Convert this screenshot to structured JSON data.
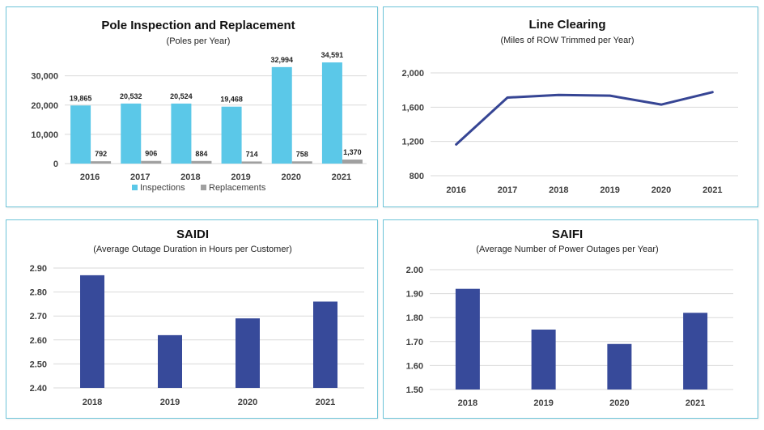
{
  "chart_data": [
    {
      "type": "bar",
      "title": "Pole Inspection and Replacement",
      "subtitle": "(Poles per Year)",
      "categories": [
        "2016",
        "2017",
        "2018",
        "2019",
        "2020",
        "2021"
      ],
      "series": [
        {
          "name": "Inspections",
          "values": [
            19865,
            20532,
            20524,
            19468,
            32994,
            34591
          ],
          "labels": [
            "19,865",
            "20,532",
            "20,524",
            "19,468",
            "32,994",
            "34,591"
          ],
          "color": "#5bc8e8"
        },
        {
          "name": "Replacements",
          "values": [
            792,
            906,
            884,
            714,
            758,
            1370
          ],
          "labels": [
            "792",
            "906",
            "884",
            "714",
            "758",
            "1,370"
          ],
          "color": "#a0a0a0"
        }
      ],
      "yticks": [
        "0",
        "10,000",
        "20,000",
        "30,000"
      ],
      "ytick_values": [
        0,
        10000,
        20000,
        30000
      ],
      "ylim": [
        0,
        36000
      ],
      "legend_position": "bottom"
    },
    {
      "type": "line",
      "title": "Line Clearing",
      "subtitle": "(Miles of ROW Trimmed per Year)",
      "categories": [
        "2016",
        "2017",
        "2018",
        "2019",
        "2020",
        "2021"
      ],
      "values": [
        1165,
        1712,
        1742,
        1734,
        1630,
        1775
      ],
      "color": "#364594",
      "yticks": [
        "800",
        "1,200",
        "1,600",
        "2,000"
      ],
      "ytick_values": [
        800,
        1200,
        1600,
        2000
      ],
      "ylim": [
        800,
        2000
      ]
    },
    {
      "type": "bar",
      "title": "SAIDI",
      "subtitle": "(Average Outage Duration in Hours per Customer)",
      "categories": [
        "2018",
        "2019",
        "2020",
        "2021"
      ],
      "values": [
        2.87,
        2.62,
        2.69,
        2.76
      ],
      "color": "#374a9a",
      "yticks": [
        "2.40",
        "2.50",
        "2.60",
        "2.70",
        "2.80",
        "2.90"
      ],
      "ytick_values": [
        2.4,
        2.5,
        2.6,
        2.7,
        2.8,
        2.9
      ],
      "ylim": [
        2.4,
        2.9
      ]
    },
    {
      "type": "bar",
      "title": "SAIFI",
      "subtitle": "(Average Number of Power Outages per Year)",
      "categories": [
        "2018",
        "2019",
        "2020",
        "2021"
      ],
      "values": [
        1.92,
        1.75,
        1.69,
        1.82
      ],
      "color": "#374a9a",
      "yticks": [
        "1.50",
        "1.60",
        "1.70",
        "1.80",
        "1.90",
        "2.00"
      ],
      "ytick_values": [
        1.5,
        1.6,
        1.7,
        1.8,
        1.9,
        2.0
      ],
      "ylim": [
        1.5,
        2.0
      ]
    }
  ]
}
